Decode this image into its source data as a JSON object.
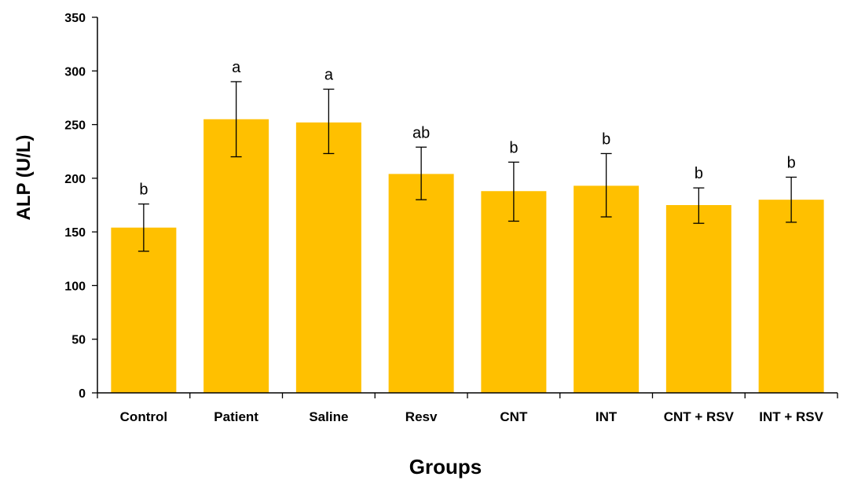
{
  "chart_data": {
    "type": "bar",
    "title": "",
    "xlabel": "Groups",
    "ylabel": "ALP (U/L)",
    "ylim": [
      0,
      350
    ],
    "yticks": [
      0,
      50,
      100,
      150,
      200,
      250,
      300,
      350
    ],
    "grid": false,
    "legend": "none",
    "bar_color": "#FFC000",
    "categories": [
      "Control",
      "Patient",
      "Saline",
      "Resv",
      "CNT",
      "INT",
      "CNT + RSV",
      "INT + RSV"
    ],
    "values": [
      154,
      255,
      252,
      204,
      188,
      193,
      175,
      180
    ],
    "error_low": [
      132,
      220,
      223,
      180,
      160,
      164,
      158,
      159
    ],
    "error_high": [
      176,
      290,
      283,
      229,
      215,
      223,
      191,
      201
    ],
    "significance_labels": [
      "b",
      "a",
      "a",
      "ab",
      "b",
      "b",
      "b",
      "b"
    ]
  }
}
